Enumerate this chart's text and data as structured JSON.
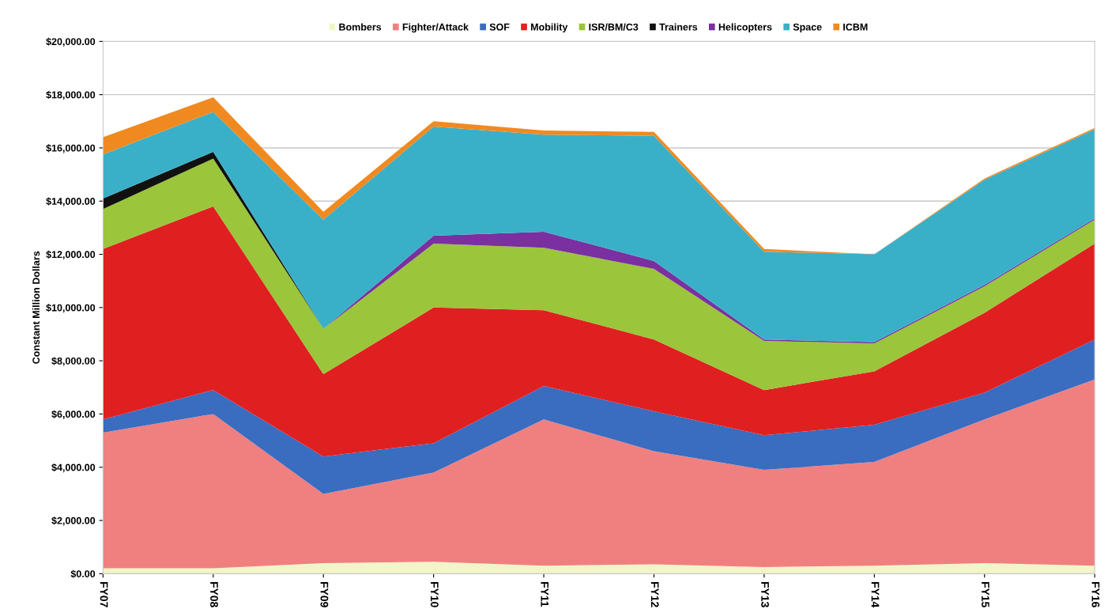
{
  "chart_data": {
    "type": "area",
    "stacked": true,
    "ylabel": "Constant Million Dollars",
    "categories": [
      "FY07",
      "FY08",
      "FY09",
      "FY10",
      "FY11",
      "FY12",
      "FY13",
      "FY14",
      "FY15",
      "FY16"
    ],
    "ylim": [
      0,
      20000
    ],
    "yticks": [
      {
        "value": 0,
        "label": "$0.00"
      },
      {
        "value": 2000,
        "label": "$2,000.00"
      },
      {
        "value": 4000,
        "label": "$4,000.00"
      },
      {
        "value": 6000,
        "label": "$6,000.00"
      },
      {
        "value": 8000,
        "label": "$8,000.00"
      },
      {
        "value": 10000,
        "label": "$10,000.00"
      },
      {
        "value": 12000,
        "label": "$12,000.00"
      },
      {
        "value": 14000,
        "label": "$14,000.00"
      },
      {
        "value": 16000,
        "label": "$16,000.00"
      },
      {
        "value": 18000,
        "label": "$18,000.00"
      },
      {
        "value": 20000,
        "label": "$20,000.00"
      }
    ],
    "grid": "y",
    "legend": "top",
    "series": [
      {
        "name": "Bombers",
        "color": "#f2f5c8",
        "values": [
          200,
          200,
          400,
          450,
          300,
          350,
          250,
          300,
          400,
          300
        ]
      },
      {
        "name": "Fighter/Attack",
        "color": "#f08080",
        "values": [
          5100,
          5800,
          2600,
          3350,
          5500,
          4250,
          3650,
          3900,
          5400,
          7000
        ]
      },
      {
        "name": "SOF",
        "color": "#3a6cc0",
        "values": [
          500,
          900,
          1400,
          1100,
          1250,
          1500,
          1300,
          1400,
          1000,
          1500
        ]
      },
      {
        "name": "Mobility",
        "color": "#e02020",
        "values": [
          6400,
          6900,
          3100,
          5100,
          2850,
          2700,
          1700,
          2000,
          3000,
          3600
        ]
      },
      {
        "name": "ISR/BM/C3",
        "color": "#9bc53a",
        "values": [
          1500,
          1800,
          1700,
          2400,
          2350,
          2650,
          1850,
          1050,
          1000,
          900
        ]
      },
      {
        "name": "Trainers",
        "color": "#111111",
        "values": [
          400,
          250,
          0,
          null,
          null,
          null,
          null,
          null,
          null,
          null
        ]
      },
      {
        "name": "Helicopters",
        "color": "#7a30a0",
        "values": [
          null,
          null,
          0,
          300,
          600,
          300,
          50,
          50,
          50,
          50
        ]
      },
      {
        "name": "Space",
        "color": "#3ab0c8",
        "values": [
          1650,
          1500,
          4100,
          4100,
          3650,
          4700,
          3300,
          3300,
          3950,
          3350
        ]
      },
      {
        "name": "ICBM",
        "color": "#f08a20",
        "values": [
          650,
          550,
          300,
          200,
          150,
          150,
          100,
          0,
          50,
          50
        ]
      }
    ]
  }
}
